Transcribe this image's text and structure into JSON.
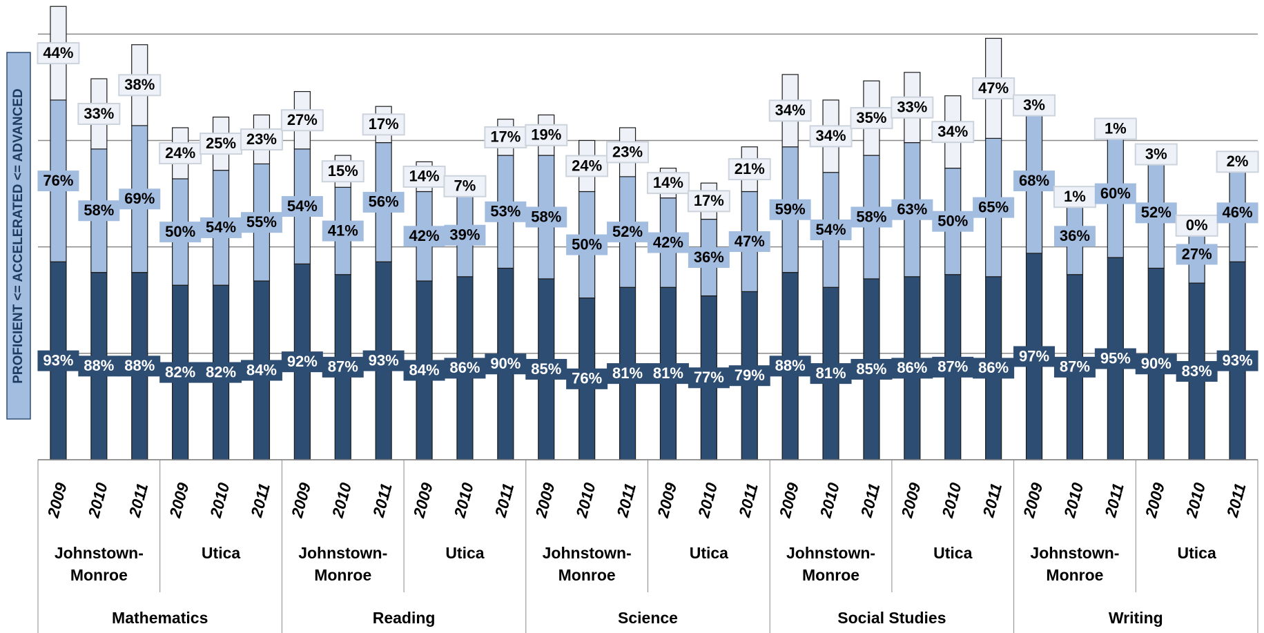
{
  "chart_data": {
    "type": "stacked-bar",
    "y_label": "PROFICIENT <= ACCELERATED <= ADVANCED",
    "ylim": [
      0,
      216
    ],
    "yticks": [
      0,
      50,
      100,
      150,
      200
    ],
    "grid": true,
    "categories": [
      "2009",
      "2010",
      "2011",
      "2009",
      "2010",
      "2011",
      "2009",
      "2010",
      "2011",
      "2009",
      "2010",
      "2011",
      "2009",
      "2010",
      "2011",
      "2009",
      "2010",
      "2011",
      "2009",
      "2010",
      "2011",
      "2009",
      "2010",
      "2011",
      "2009",
      "2010",
      "2011",
      "2009",
      "2010",
      "2011"
    ],
    "schools": [
      "Johnstown-Monroe",
      "Utica",
      "Johnstown-Monroe",
      "Utica",
      "Johnstown-Monroe",
      "Utica",
      "Johnstown-Monroe",
      "Utica",
      "Johnstown-Monroe",
      "Utica"
    ],
    "subjects": [
      "Mathematics",
      "Reading",
      "Science",
      "Social Studies",
      "Writing"
    ],
    "series": [
      {
        "color": "#2e4d73",
        "label_color": "#ffffff",
        "values": [
          93,
          88,
          88,
          82,
          82,
          84,
          92,
          87,
          93,
          84,
          86,
          90,
          85,
          76,
          81,
          81,
          77,
          79,
          88,
          81,
          85,
          86,
          87,
          86,
          97,
          87,
          95,
          90,
          83,
          93
        ],
        "value_labels": [
          "93%",
          "88%",
          "88%",
          "82%",
          "82%",
          "84%",
          "92%",
          "87%",
          "93%",
          "84%",
          "86%",
          "90%",
          "85%",
          "76%",
          "81%",
          "81%",
          "77%",
          "79%",
          "88%",
          "81%",
          "85%",
          "86%",
          "87%",
          "86%",
          "97%",
          "87%",
          "95%",
          "90%",
          "83%",
          "93%"
        ]
      },
      {
        "color": "#a3bde0",
        "label_color": "#000000",
        "values": [
          76,
          58,
          69,
          50,
          54,
          55,
          54,
          41,
          56,
          42,
          39,
          53,
          58,
          50,
          52,
          42,
          36,
          47,
          59,
          54,
          58,
          63,
          50,
          65,
          68,
          36,
          60,
          52,
          27,
          46
        ],
        "value_labels": [
          "76%",
          "58%",
          "69%",
          "50%",
          "54%",
          "55%",
          "54%",
          "41%",
          "56%",
          "42%",
          "39%",
          "53%",
          "58%",
          "50%",
          "52%",
          "42%",
          "36%",
          "47%",
          "59%",
          "54%",
          "58%",
          "63%",
          "50%",
          "65%",
          "68%",
          "36%",
          "60%",
          "52%",
          "27%",
          "46%"
        ]
      },
      {
        "color": "#eef2f8",
        "label_color": "#000000",
        "values": [
          44,
          33,
          38,
          24,
          25,
          23,
          27,
          15,
          17,
          14,
          7,
          17,
          19,
          24,
          23,
          14,
          17,
          21,
          34,
          34,
          35,
          33,
          34,
          47,
          3,
          1,
          1,
          3,
          0,
          2
        ],
        "value_labels": [
          "44%",
          "33%",
          "38%",
          "24%",
          "25%",
          "23%",
          "27%",
          "15%",
          "17%",
          "14%",
          "7%",
          "17%",
          "19%",
          "24%",
          "23%",
          "14%",
          "17%",
          "21%",
          "34%",
          "34%",
          "35%",
          "33%",
          "34%",
          "47%",
          "3%",
          "1%",
          "1%",
          "3%",
          "0%",
          "2%"
        ]
      }
    ]
  }
}
